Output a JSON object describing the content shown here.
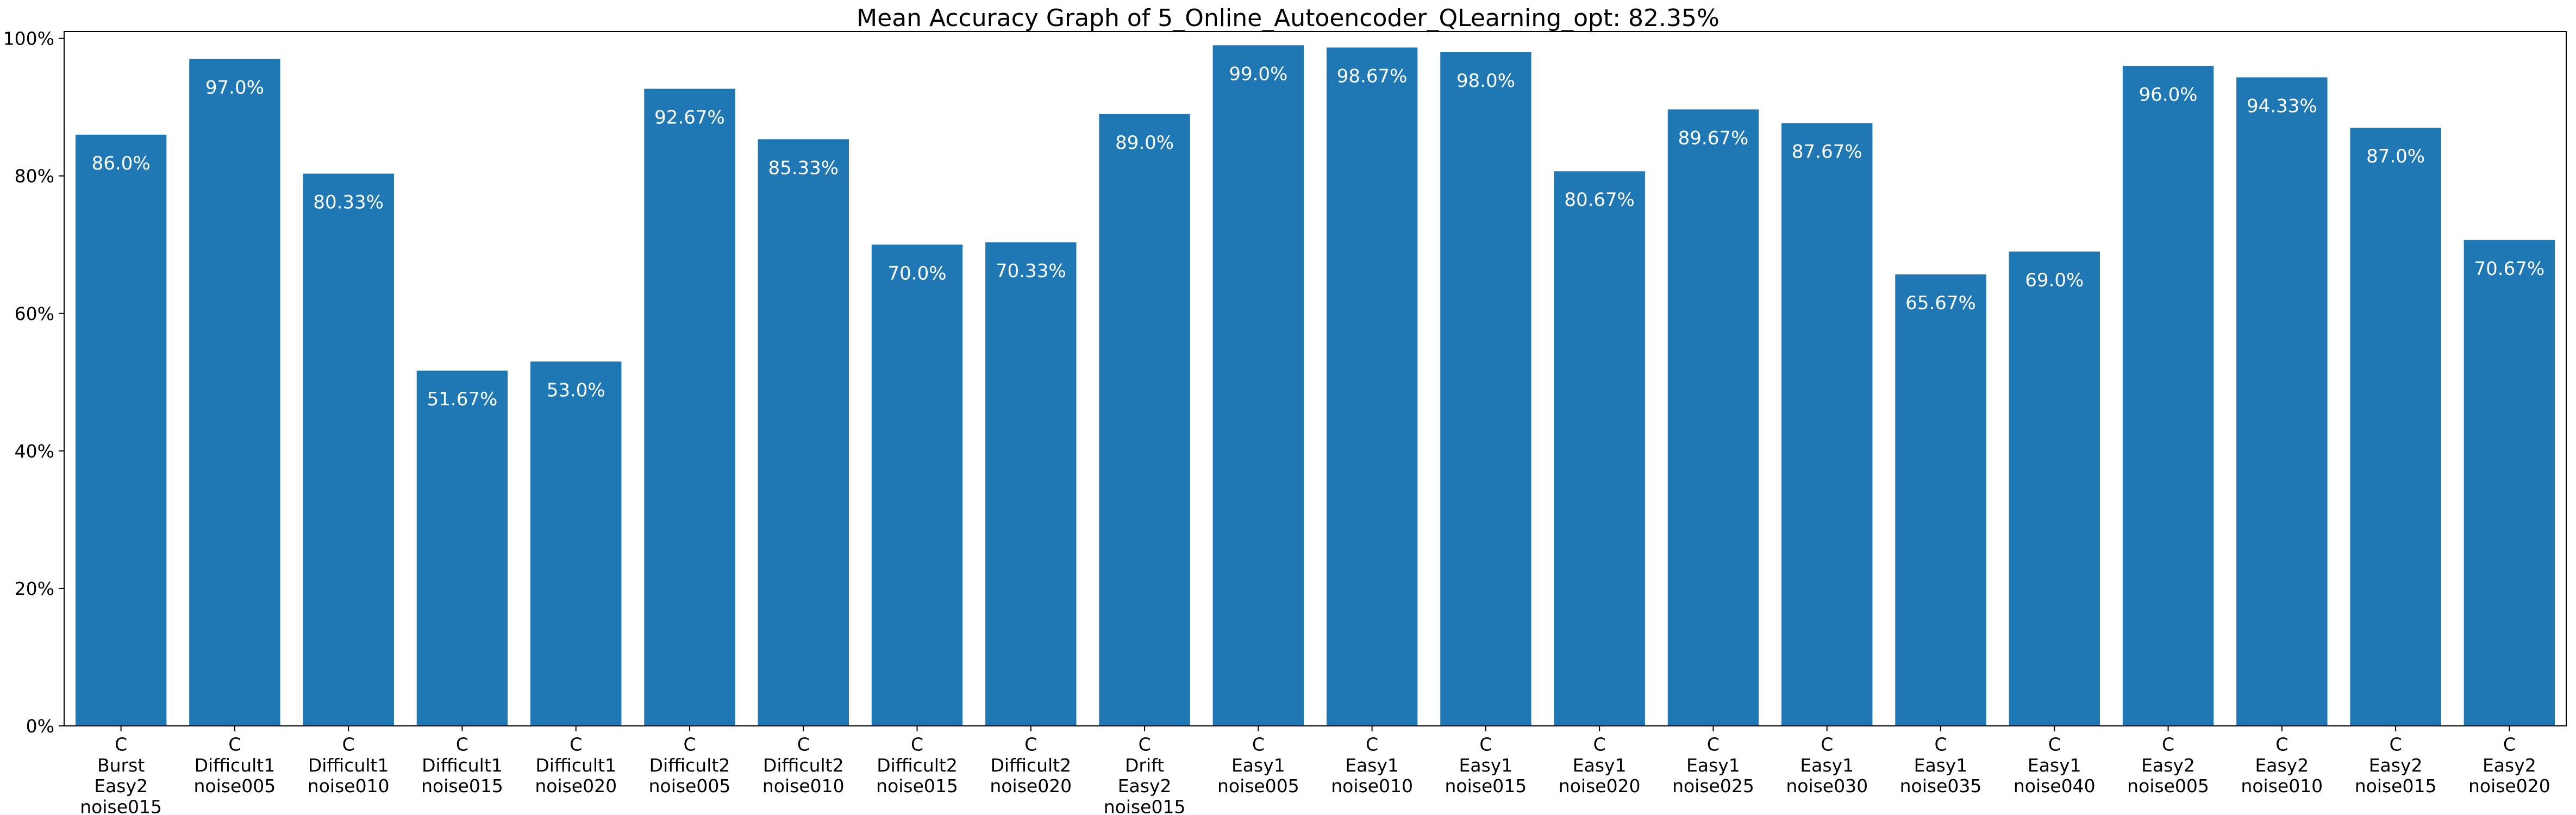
{
  "chart_data": {
    "type": "bar",
    "title": "Mean Accuracy Graph of 5_Online_Autoencoder_QLearning_opt: 82.35%",
    "xlabel": "",
    "ylabel": "",
    "ylim": [
      0,
      101
    ],
    "y_ticks": [
      0,
      20,
      40,
      60,
      80,
      100
    ],
    "y_tick_labels": [
      "0%",
      "20%",
      "40%",
      "60%",
      "80%",
      "100%"
    ],
    "grid": false,
    "bar_color": "#1f77b4",
    "value_label_color": "#ffffff",
    "categories": [
      [
        "C",
        "Burst",
        "Easy2",
        "noise015"
      ],
      [
        "C",
        "Difficult1",
        "noise005"
      ],
      [
        "C",
        "Difficult1",
        "noise010"
      ],
      [
        "C",
        "Difficult1",
        "noise015"
      ],
      [
        "C",
        "Difficult1",
        "noise020"
      ],
      [
        "C",
        "Difficult2",
        "noise005"
      ],
      [
        "C",
        "Difficult2",
        "noise010"
      ],
      [
        "C",
        "Difficult2",
        "noise015"
      ],
      [
        "C",
        "Difficult2",
        "noise020"
      ],
      [
        "C",
        "Drift",
        "Easy2",
        "noise015"
      ],
      [
        "C",
        "Easy1",
        "noise005"
      ],
      [
        "C",
        "Easy1",
        "noise010"
      ],
      [
        "C",
        "Easy1",
        "noise015"
      ],
      [
        "C",
        "Easy1",
        "noise020"
      ],
      [
        "C",
        "Easy1",
        "noise025"
      ],
      [
        "C",
        "Easy1",
        "noise030"
      ],
      [
        "C",
        "Easy1",
        "noise035"
      ],
      [
        "C",
        "Easy1",
        "noise040"
      ],
      [
        "C",
        "Easy2",
        "noise005"
      ],
      [
        "C",
        "Easy2",
        "noise010"
      ],
      [
        "C",
        "Easy2",
        "noise015"
      ],
      [
        "C",
        "Easy2",
        "noise020"
      ]
    ],
    "values": [
      86.0,
      97.0,
      80.33,
      51.67,
      53.0,
      92.67,
      85.33,
      70.0,
      70.33,
      89.0,
      99.0,
      98.67,
      98.0,
      80.67,
      89.67,
      87.67,
      65.67,
      69.0,
      96.0,
      94.33,
      87.0,
      70.67
    ],
    "value_labels": [
      "86.0%",
      "97.0%",
      "80.33%",
      "51.67%",
      "53.0%",
      "92.67%",
      "85.33%",
      "70.0%",
      "70.33%",
      "89.0%",
      "99.0%",
      "98.67%",
      "98.0%",
      "80.67%",
      "89.67%",
      "87.67%",
      "65.67%",
      "69.0%",
      "96.0%",
      "94.33%",
      "87.0%",
      "70.67%"
    ]
  }
}
